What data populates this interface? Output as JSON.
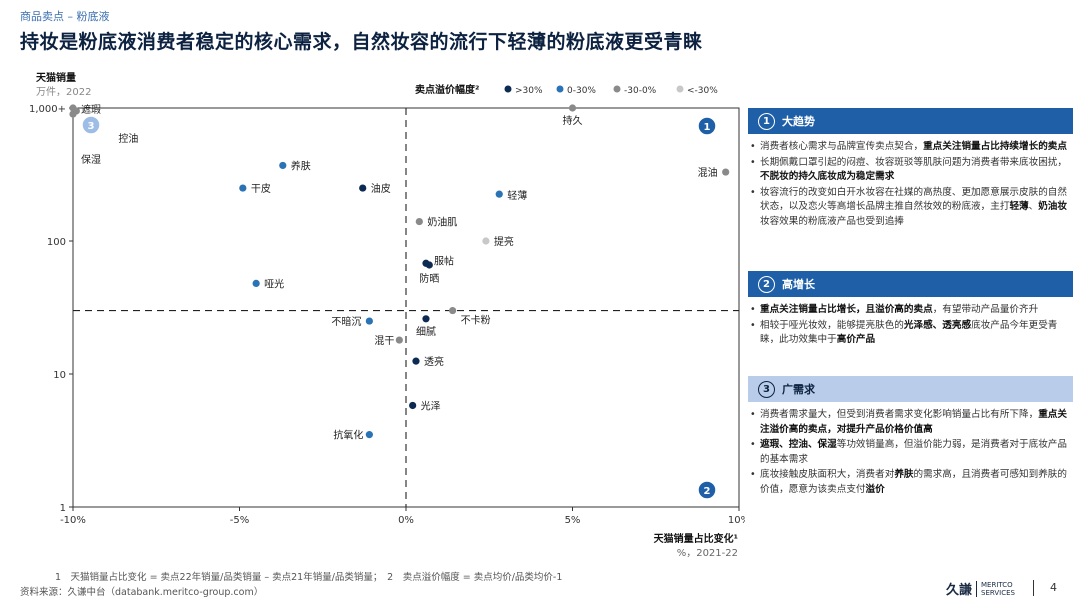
{
  "header": {
    "breadcrumb": "商品卖点 – 粉底液",
    "title": "持妆是粉底液消费者稳定的核心需求，自然妆容的流行下轻薄的粉底液更受青睐"
  },
  "colors": {
    "dark_navy": "#0d2a52",
    "mid_blue": "#2a73b5",
    "dark_gray": "#8a8a8a",
    "light_gray": "#c8c8c8",
    "accent_blue": "#1f5fa8",
    "light_blue": "#b9cdea"
  },
  "chart_data": {
    "type": "scatter",
    "title": "",
    "ylabel": "天猫销量",
    "ylabel_unit": "万件，2022",
    "xlabel": "天猫销量占比变化¹",
    "xlabel_unit": "%，2021-22",
    "x_ticks": [
      "-10%",
      "-5%",
      "0%",
      "5%",
      "10%"
    ],
    "y_ticks": [
      "1,000+",
      "100",
      "10",
      "1"
    ],
    "x_range": [
      -10,
      10
    ],
    "y_range": [
      1,
      1000
    ],
    "y_scale": "log",
    "x_divider": 0,
    "y_divider": 30,
    "legend_title": "卖点溢价幅度²",
    "legend": [
      {
        "label": ">30%",
        "color": "#0d2a52"
      },
      {
        "label": "0-30%",
        "color": "#2a73b5"
      },
      {
        "label": "-30-0%",
        "color": "#8a8a8a"
      },
      {
        "label": "<-30%",
        "color": "#c8c8c8"
      }
    ],
    "quadrant_badges": [
      "1",
      "2",
      "3"
    ],
    "points": [
      {
        "label": "持久",
        "x": 5.0,
        "y": 1000,
        "group": "-30-0%"
      },
      {
        "label": "遮瑕",
        "x": -10.0,
        "y": 1000,
        "group": "-30-0%"
      },
      {
        "label": "控油",
        "x": -9.9,
        "y": 950,
        "group": "-30-0%"
      },
      {
        "label": "保湿",
        "x": -10.0,
        "y": 900,
        "group": "-30-0%"
      },
      {
        "label": "混油",
        "x": 9.6,
        "y": 330,
        "group": "-30-0%"
      },
      {
        "label": "养肤",
        "x": -3.7,
        "y": 370,
        "group": "0-30%"
      },
      {
        "label": "干皮",
        "x": -4.9,
        "y": 250,
        "group": "0-30%"
      },
      {
        "label": "油皮",
        "x": -1.3,
        "y": 250,
        "group": ">30%"
      },
      {
        "label": "轻薄",
        "x": 2.8,
        "y": 225,
        "group": "0-30%"
      },
      {
        "label": "奶油肌",
        "x": 0.4,
        "y": 140,
        "group": "-30-0%"
      },
      {
        "label": "提亮",
        "x": 2.4,
        "y": 100,
        "group": "<-30%"
      },
      {
        "label": "服帖",
        "x": 0.6,
        "y": 68,
        "group": ">30%"
      },
      {
        "label": "防晒",
        "x": 0.7,
        "y": 66,
        "group": ">30%"
      },
      {
        "label": "哑光",
        "x": -4.5,
        "y": 48,
        "group": "0-30%"
      },
      {
        "label": "不卡粉",
        "x": 1.4,
        "y": 30,
        "group": "-30-0%"
      },
      {
        "label": "不暗沉",
        "x": -1.1,
        "y": 25,
        "group": "0-30%"
      },
      {
        "label": "细腻",
        "x": 0.6,
        "y": 26,
        "group": ">30%"
      },
      {
        "label": "混干",
        "x": -0.2,
        "y": 18,
        "group": "-30-0%"
      },
      {
        "label": "透亮",
        "x": 0.3,
        "y": 12.5,
        "group": ">30%"
      },
      {
        "label": "光泽",
        "x": 0.2,
        "y": 5.8,
        "group": ">30%"
      },
      {
        "label": "抗氧化",
        "x": -1.1,
        "y": 3.5,
        "group": "0-30%"
      }
    ]
  },
  "panels": [
    {
      "num": "1",
      "title": "大趋势",
      "bullets": [
        "消费者核心需求与品牌宣传卖点契合，<b>重点关注销量占比持续增长的卖点</b>",
        "长期佩戴口罩引起的闷痘、妆容斑驳等肌肤问题为消费者带来底妆困扰，<b>不脱妆的持久底妆成为稳定需求</b>",
        "妆容流行的改变如白开水妆容在社媒的高热度、更加愿意展示皮肤的自然状态，以及恋火等高增长品牌主推自然妆效的粉底液，主打<b>轻薄</b>、<b>奶油妆</b>妆容效果的粉底液产品也受到追捧"
      ]
    },
    {
      "num": "2",
      "title": "高增长",
      "bullets": [
        "<b>重点关注销量占比增长，且溢价高的卖点</b>，有望带动产品量价齐升",
        "相较于哑光妆效，能够提亮肤色的<b>光泽感、透亮感</b>底妆产品今年更受青睐，此功效集中于<b>高价产品</b>"
      ]
    },
    {
      "num": "3",
      "title": "广需求",
      "bullets": [
        "消费者需求量大，但受到消费者需求变化影响销量占比有所下降，<b>重点关注溢价高的卖点，对提升产品价格价值高</b>",
        "<b>遮瑕、控油、保湿</b>等功效销量高，但溢价能力弱，是消费者对于底妆产品的基本需求",
        "底妆接触皮肤面积大，消费者对<b>养肤</b>的需求高，且消费者可感知到养肤的价值，愿意为该卖点支付<b>溢价</b>"
      ]
    }
  ],
  "footer": {
    "footnote": "1　天猫销量占比变化 = 卖点22年销量/品类销量 – 卖点21年销量/品类销量；　2　卖点溢价幅度 = 卖点均价/品类均价-1",
    "source": "资料来源：久谦中台（databank.meritco-group.com）",
    "logo_cn": "久謙",
    "logo_en_1": "MERITCO",
    "logo_en_2": "SERVICES",
    "page_number": "4"
  }
}
